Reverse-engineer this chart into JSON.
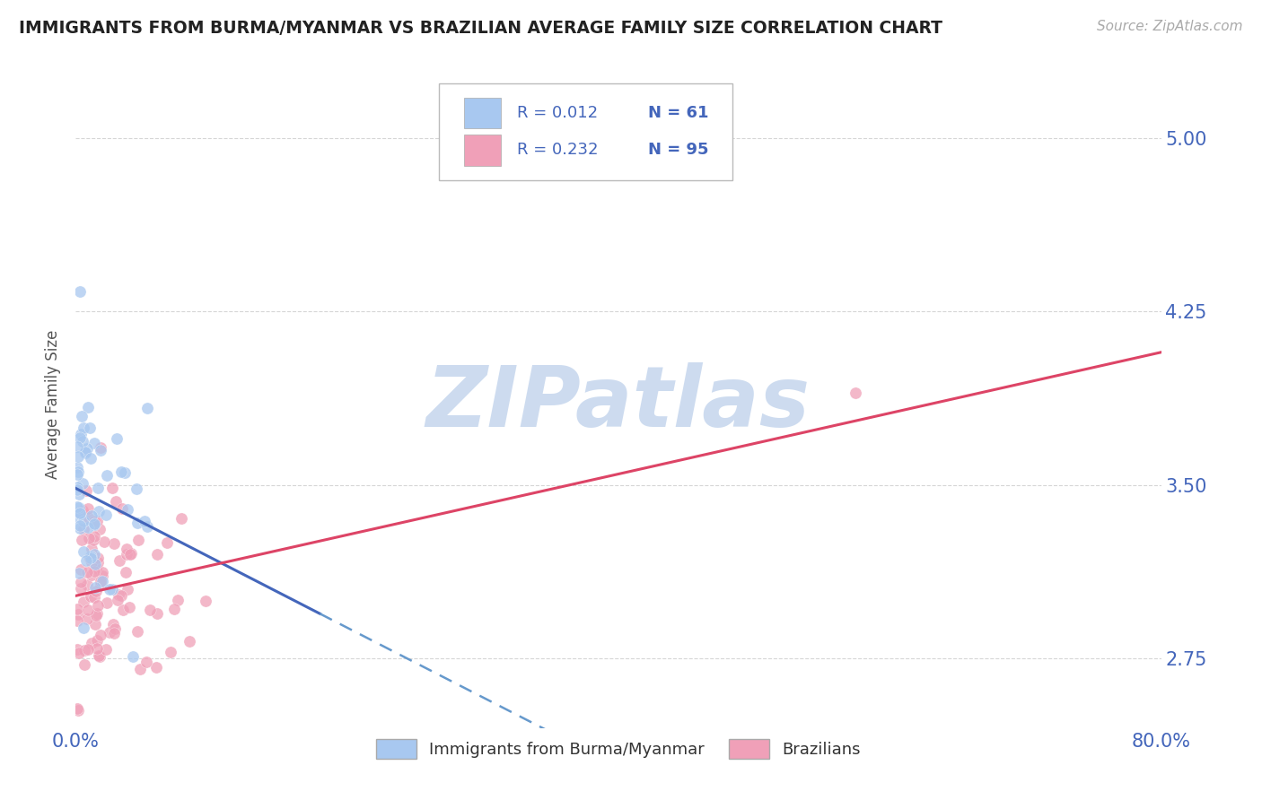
{
  "title": "IMMIGRANTS FROM BURMA/MYANMAR VS BRAZILIAN AVERAGE FAMILY SIZE CORRELATION CHART",
  "source": "Source: ZipAtlas.com",
  "ylabel": "Average Family Size",
  "series1_label": "Immigrants from Burma/Myanmar",
  "series2_label": "Brazilians",
  "R1": 0.012,
  "N1": 61,
  "R2": 0.232,
  "N2": 95,
  "color1": "#a8c8f0",
  "color2": "#f0a0b8",
  "trendline1_solid_color": "#4466bb",
  "trendline1_dash_color": "#6699cc",
  "trendline2_color": "#dd4466",
  "background_color": "#ffffff",
  "grid_color": "#cccccc",
  "title_color": "#222222",
  "right_axis_color": "#4466bb",
  "xlim": [
    0.0,
    0.8
  ],
  "ylim": [
    2.45,
    5.25
  ],
  "yticks": [
    2.75,
    3.5,
    4.25,
    5.0
  ],
  "xticks": [
    0.0,
    0.8
  ],
  "xticklabels": [
    "0.0%",
    "80.0%"
  ],
  "watermark": "ZIPatlas",
  "watermark_color": "#c8d8ee",
  "legend_R1_text": "R = 0.012",
  "legend_N1_text": "N = 61",
  "legend_R2_text": "R = 0.232",
  "legend_N2_text": "N = 95",
  "legend_R_color": "#4466bb",
  "legend_N_color": "#333333",
  "seed1": 42,
  "seed2": 7
}
